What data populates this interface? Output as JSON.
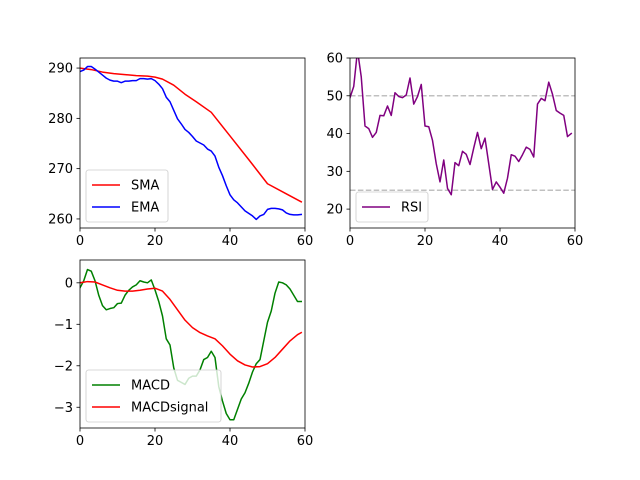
{
  "chart_data": [
    {
      "type": "line",
      "xlim": [
        0,
        60
      ],
      "ylim": [
        258.2,
        292.0
      ],
      "xticks": [
        0,
        20,
        40,
        60
      ],
      "yticks": [
        260,
        270,
        280,
        290
      ],
      "grid": false,
      "legend_position": "lower-left",
      "series": [
        {
          "name": "SMA",
          "color": "#ff0000",
          "x": [
            0,
            3,
            6,
            9,
            12,
            15,
            18,
            20,
            22,
            25,
            28,
            31,
            35,
            40,
            45,
            50,
            55,
            59
          ],
          "y": [
            290.0,
            289.7,
            289.2,
            288.9,
            288.7,
            288.5,
            288.4,
            288.2,
            287.8,
            286.6,
            284.8,
            283.3,
            281.2,
            276.5,
            271.8,
            267.0,
            265.0,
            263.4
          ]
        },
        {
          "name": "EMA",
          "color": "#0000ff",
          "x": [
            0,
            1,
            2,
            3,
            4,
            5,
            6,
            7,
            8,
            9,
            10,
            11,
            12,
            13,
            14,
            15,
            16,
            17,
            18,
            19,
            20,
            21,
            22,
            23,
            24,
            25,
            26,
            27,
            28,
            29,
            30,
            31,
            32,
            33,
            34,
            35,
            36,
            37,
            38,
            39,
            40,
            41,
            42,
            43,
            44,
            45,
            46,
            47,
            48,
            49,
            50,
            51,
            52,
            53,
            54,
            55,
            56,
            57,
            58,
            59
          ],
          "y": [
            289.3,
            289.6,
            290.3,
            290.3,
            289.8,
            289.2,
            288.6,
            288.0,
            287.6,
            287.4,
            287.4,
            287.1,
            287.4,
            287.4,
            287.5,
            287.5,
            287.9,
            287.9,
            287.8,
            287.9,
            287.5,
            286.8,
            285.9,
            284.2,
            283.3,
            281.6,
            279.9,
            278.9,
            277.8,
            277.2,
            276.4,
            275.5,
            275.1,
            274.7,
            273.9,
            273.5,
            272.5,
            270.3,
            268.6,
            266.6,
            264.8,
            263.8,
            263.2,
            262.4,
            261.6,
            261.1,
            260.6,
            259.9,
            260.6,
            260.9,
            261.9,
            262.1,
            262.1,
            262.0,
            261.8,
            261.2,
            260.9,
            260.8,
            260.8,
            260.9
          ]
        }
      ]
    },
    {
      "type": "line",
      "xlim": [
        0,
        60
      ],
      "ylim": [
        15,
        60
      ],
      "xticks": [
        0,
        20,
        40,
        60
      ],
      "yticks": [
        20,
        30,
        40,
        50,
        60
      ],
      "grid": false,
      "legend_position": "lower-left",
      "reference_lines": [
        {
          "y": 50,
          "color": "#c0c0c0",
          "style": "dashed"
        },
        {
          "y": 25,
          "color": "#c0c0c0",
          "style": "dashed"
        }
      ],
      "series": [
        {
          "name": "RSI",
          "color": "#800080",
          "x": [
            0,
            1,
            2,
            3,
            4,
            5,
            6,
            7,
            8,
            9,
            10,
            11,
            12,
            13,
            14,
            15,
            16,
            17,
            18,
            19,
            20,
            21,
            22,
            23,
            24,
            25,
            26,
            27,
            28,
            29,
            30,
            31,
            32,
            33,
            34,
            35,
            36,
            37,
            38,
            39,
            40,
            41,
            42,
            43,
            44,
            45,
            46,
            47,
            48,
            49,
            50,
            51,
            52,
            53,
            54,
            55,
            56,
            57,
            58,
            59
          ],
          "y": [
            49.5,
            52.5,
            62.0,
            55.0,
            42.0,
            41.3,
            39.0,
            40.3,
            44.8,
            44.7,
            47.3,
            44.8,
            50.8,
            49.8,
            49.5,
            50.2,
            54.7,
            47.8,
            49.8,
            53.0,
            42.0,
            41.8,
            38.2,
            32.0,
            27.2,
            33.0,
            25.5,
            23.8,
            32.3,
            31.5,
            35.3,
            34.5,
            31.8,
            36.2,
            40.3,
            36.0,
            38.8,
            32.0,
            25.2,
            27.2,
            25.8,
            24.2,
            28.2,
            34.4,
            34.0,
            32.6,
            34.4,
            36.4,
            35.8,
            33.8,
            47.8,
            49.3,
            48.7,
            53.6,
            50.4,
            46.1,
            45.4,
            44.8,
            39.2,
            40.0
          ]
        }
      ]
    },
    {
      "type": "line",
      "xlim": [
        0,
        60
      ],
      "ylim": [
        -3.5,
        0.55
      ],
      "xticks": [
        0,
        20,
        40,
        60
      ],
      "yticks": [
        -3,
        -2,
        -1,
        0
      ],
      "grid": false,
      "legend_position": "lower-left",
      "series": [
        {
          "name": "MACD",
          "color": "#008000",
          "x": [
            0,
            1,
            2,
            3,
            4,
            5,
            6,
            7,
            8,
            9,
            10,
            11,
            12,
            13,
            14,
            15,
            16,
            17,
            18,
            19,
            20,
            21,
            22,
            23,
            24,
            25,
            26,
            27,
            28,
            29,
            30,
            31,
            32,
            33,
            34,
            35,
            36,
            37,
            38,
            39,
            40,
            41,
            42,
            43,
            44,
            45,
            46,
            47,
            48,
            49,
            50,
            51,
            52,
            53,
            54,
            55,
            56,
            57,
            58,
            59
          ],
          "y": [
            -0.12,
            0.05,
            0.32,
            0.28,
            0.05,
            -0.3,
            -0.55,
            -0.65,
            -0.62,
            -0.6,
            -0.5,
            -0.49,
            -0.3,
            -0.18,
            -0.1,
            -0.05,
            0.05,
            0.02,
            0.0,
            0.07,
            -0.17,
            -0.45,
            -0.8,
            -1.35,
            -1.5,
            -2.05,
            -2.35,
            -2.4,
            -2.45,
            -2.3,
            -2.25,
            -2.25,
            -2.1,
            -1.85,
            -1.8,
            -1.65,
            -1.8,
            -2.5,
            -2.85,
            -3.15,
            -3.3,
            -3.3,
            -3.05,
            -2.8,
            -2.65,
            -2.42,
            -2.15,
            -1.95,
            -1.85,
            -1.4,
            -0.95,
            -0.68,
            -0.25,
            0.02,
            0.0,
            -0.05,
            -0.15,
            -0.3,
            -0.45,
            -0.45
          ]
        },
        {
          "name": "MACDsignal",
          "color": "#ff0000",
          "x": [
            0,
            2,
            4,
            6,
            8,
            10,
            12,
            14,
            16,
            18,
            20,
            22,
            24,
            26,
            28,
            30,
            32,
            34,
            36,
            38,
            40,
            42,
            44,
            46,
            48,
            50,
            52,
            54,
            56,
            58,
            59
          ],
          "y": [
            0.0,
            0.03,
            0.02,
            -0.05,
            -0.12,
            -0.18,
            -0.2,
            -0.2,
            -0.18,
            -0.15,
            -0.13,
            -0.2,
            -0.4,
            -0.65,
            -0.9,
            -1.08,
            -1.2,
            -1.28,
            -1.35,
            -1.52,
            -1.72,
            -1.88,
            -1.98,
            -2.03,
            -2.02,
            -1.95,
            -1.8,
            -1.6,
            -1.4,
            -1.25,
            -1.2
          ]
        }
      ]
    }
  ]
}
